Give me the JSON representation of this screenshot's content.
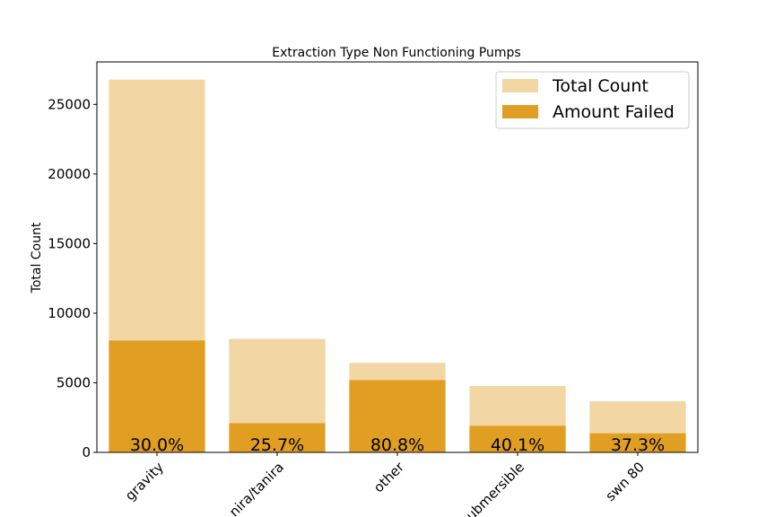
{
  "chart_data": {
    "type": "bar",
    "title": "Extraction Type Non Functioning Pumps",
    "xlabel": "",
    "ylabel": "Total Count",
    "categories": [
      "gravity",
      "nira/tanira",
      "other",
      "submersible",
      "swn 80"
    ],
    "series": [
      {
        "name": "Total Count",
        "values": [
          26780,
          8154,
          6430,
          4764,
          3670
        ],
        "color": "#f2d6a4"
      },
      {
        "name": "Amount Failed",
        "values": [
          8040,
          2096,
          5195,
          1910,
          1369
        ],
        "color": "#e09f22"
      }
    ],
    "data_labels": [
      "30.0%",
      "25.7%",
      "80.8%",
      "40.1%",
      "37.3%"
    ],
    "ylim": [
      0,
      28050
    ],
    "yticks": [
      0,
      5000,
      10000,
      15000,
      20000,
      25000
    ],
    "legend_position": "top-right",
    "grid": false
  }
}
